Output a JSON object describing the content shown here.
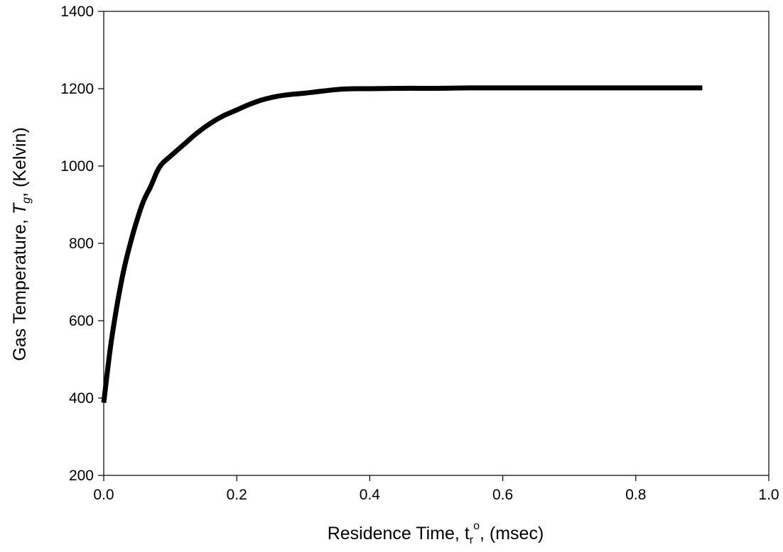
{
  "chart_data": {
    "type": "line",
    "title": "",
    "xlabel": {
      "main": "Residence Time, t",
      "sub": "r",
      "sup": "o",
      "tail": ", (msec)"
    },
    "ylabel": {
      "main": "Gas Temperature, ",
      "italic": "T",
      "sub": "g",
      "tail": ", (Kelvin)"
    },
    "xlim": [
      0.0,
      1.0
    ],
    "ylim": [
      200,
      1400
    ],
    "xticks": [
      "0.0",
      "0.2",
      "0.4",
      "0.6",
      "0.8",
      "1.0"
    ],
    "yticks": [
      "200",
      "400",
      "600",
      "800",
      "1000",
      "1200",
      "1400"
    ],
    "grid": false,
    "legend": "none",
    "series": [
      {
        "color": "#000000",
        "x": [
          0.0,
          0.01,
          0.02,
          0.03,
          0.04,
          0.05,
          0.06,
          0.07,
          0.075,
          0.08,
          0.085,
          0.09,
          0.1,
          0.12,
          0.14,
          0.16,
          0.18,
          0.2,
          0.22,
          0.24,
          0.26,
          0.28,
          0.3,
          0.32,
          0.34,
          0.36,
          0.38,
          0.4,
          0.45,
          0.5,
          0.55,
          0.6,
          0.7,
          0.8,
          0.9
        ],
        "y": [
          388,
          530,
          640,
          730,
          800,
          860,
          910,
          945,
          965,
          985,
          1000,
          1010,
          1025,
          1055,
          1085,
          1110,
          1130,
          1145,
          1160,
          1172,
          1180,
          1185,
          1188,
          1192,
          1196,
          1199,
          1200,
          1200,
          1201,
          1201,
          1202,
          1202,
          1202,
          1202,
          1202
        ]
      }
    ]
  }
}
